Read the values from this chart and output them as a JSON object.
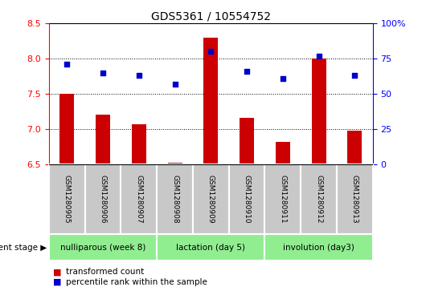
{
  "title": "GDS5361 / 10554752",
  "samples": [
    "GSM1280905",
    "GSM1280906",
    "GSM1280907",
    "GSM1280908",
    "GSM1280909",
    "GSM1280910",
    "GSM1280911",
    "GSM1280912",
    "GSM1280913"
  ],
  "red_values": [
    7.5,
    7.2,
    7.07,
    6.52,
    8.3,
    7.16,
    6.82,
    8.0,
    6.98
  ],
  "blue_values": [
    71,
    65,
    63,
    57,
    80,
    66,
    61,
    77,
    63
  ],
  "ylim_left": [
    6.5,
    8.5
  ],
  "ylim_right": [
    0,
    100
  ],
  "yticks_left": [
    6.5,
    7.0,
    7.5,
    8.0,
    8.5
  ],
  "yticks_right": [
    0,
    25,
    50,
    75,
    100
  ],
  "ytick_labels_right": [
    "0",
    "25",
    "50",
    "75",
    "100%"
  ],
  "bar_color": "#CC0000",
  "dot_color": "#0000CC",
  "bar_width": 0.4,
  "legend_red": "transformed count",
  "legend_blue": "percentile rank within the sample",
  "sample_bg": "#C8C8C8",
  "group_bg": "#90EE90",
  "groups": [
    {
      "label": "nulliparous (week 8)",
      "start": 0,
      "end": 2
    },
    {
      "label": "lactation (day 5)",
      "start": 3,
      "end": 5
    },
    {
      "label": "involution (day3)",
      "start": 6,
      "end": 8
    }
  ]
}
